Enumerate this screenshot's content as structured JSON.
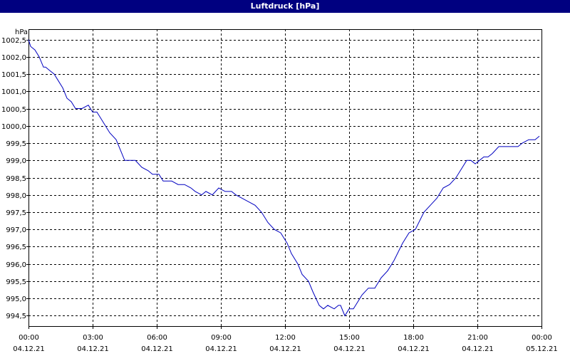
{
  "window": {
    "title": "Luftdruck [hPa]"
  },
  "chart_data": {
    "type": "line",
    "title": "Luftdruck [hPa]",
    "ylabel": "hPa",
    "xlabel": "",
    "ylim": [
      994.2,
      1002.8
    ],
    "xlim": [
      0,
      24
    ],
    "grid": true,
    "line_color": "#0000c0",
    "y_ticks": [
      994.5,
      995.0,
      995.5,
      996.0,
      996.5,
      997.0,
      997.5,
      998.0,
      998.5,
      999.0,
      999.5,
      1000.0,
      1000.5,
      1001.0,
      1001.5,
      1002.0,
      1002.5
    ],
    "y_tick_labels": [
      "994,5",
      "995,0",
      "995,5",
      "996,0",
      "996,5",
      "997,0",
      "997,5",
      "998,0",
      "998,5",
      "999,0",
      "999,5",
      "1000,0",
      "1000,5",
      "1001,0",
      "1001,5",
      "1002,0",
      "1002,5"
    ],
    "x_ticks": [
      0,
      3,
      6,
      9,
      12,
      15,
      18,
      21,
      24
    ],
    "x_tick_labels": [
      {
        "time": "00:00",
        "date": "04.12.21"
      },
      {
        "time": "03:00",
        "date": "04.12.21"
      },
      {
        "time": "06:00",
        "date": "04.12.21"
      },
      {
        "time": "09:00",
        "date": "04.12.21"
      },
      {
        "time": "12:00",
        "date": "04.12.21"
      },
      {
        "time": "15:00",
        "date": "04.12.21"
      },
      {
        "time": "18:00",
        "date": "04.12.21"
      },
      {
        "time": "21:00",
        "date": "04.12.21"
      },
      {
        "time": "00:00",
        "date": "05.12.21"
      }
    ],
    "series": [
      {
        "x": [
          0.0,
          0.1,
          0.3,
          0.5,
          0.7,
          0.8,
          1.0,
          1.2,
          1.4,
          1.6,
          1.8,
          2.0,
          2.2,
          2.5,
          2.8,
          3.0,
          3.2,
          3.5,
          3.8,
          4.1,
          4.3,
          4.5,
          4.7,
          5.0,
          5.3,
          5.6,
          5.8,
          6.1,
          6.3,
          6.7,
          7.0,
          7.3,
          7.6,
          7.8,
          8.1,
          8.3,
          8.6,
          8.9,
          9.2,
          9.5,
          9.7,
          10.0,
          10.3,
          10.6,
          10.9,
          11.2,
          11.5,
          11.8,
          12.1,
          12.3,
          12.6,
          12.8,
          13.1,
          13.3,
          13.6,
          13.8,
          14.0,
          14.3,
          14.5,
          14.6,
          14.8,
          15.0,
          15.2,
          15.4,
          15.6,
          15.9,
          16.2,
          16.5,
          16.8,
          17.1,
          17.5,
          17.8,
          18.1,
          18.5,
          18.8,
          19.1,
          19.4,
          19.7,
          20.0,
          20.3,
          20.5,
          20.7,
          20.9,
          21.1,
          21.3,
          21.5,
          21.7,
          22.0,
          22.3,
          22.6,
          22.9,
          23.1,
          23.4,
          23.7,
          23.9
        ],
        "y": [
          1002.5,
          1002.3,
          1002.2,
          1002.0,
          1001.7,
          1001.7,
          1001.6,
          1001.5,
          1001.3,
          1001.1,
          1000.8,
          1000.7,
          1000.5,
          1000.5,
          1000.6,
          1000.4,
          1000.4,
          1000.1,
          999.8,
          999.6,
          999.3,
          999.0,
          999.0,
          999.0,
          998.8,
          998.7,
          998.6,
          998.6,
          998.4,
          998.4,
          998.3,
          998.3,
          998.2,
          998.1,
          998.0,
          998.1,
          998.0,
          998.2,
          998.1,
          998.1,
          998.0,
          997.9,
          997.8,
          997.7,
          997.5,
          997.2,
          997.0,
          996.9,
          996.6,
          996.3,
          996.0,
          995.7,
          995.5,
          995.2,
          994.8,
          994.7,
          994.8,
          994.7,
          994.8,
          994.8,
          994.5,
          994.7,
          994.7,
          994.9,
          995.1,
          995.3,
          995.3,
          995.6,
          995.8,
          996.1,
          996.6,
          996.9,
          997.0,
          997.5,
          997.7,
          997.9,
          998.2,
          998.3,
          998.5,
          998.8,
          999.0,
          999.0,
          998.9,
          999.0,
          999.1,
          999.1,
          999.2,
          999.4,
          999.4,
          999.4,
          999.4,
          999.5,
          999.6,
          999.6,
          999.7
        ]
      }
    ]
  }
}
